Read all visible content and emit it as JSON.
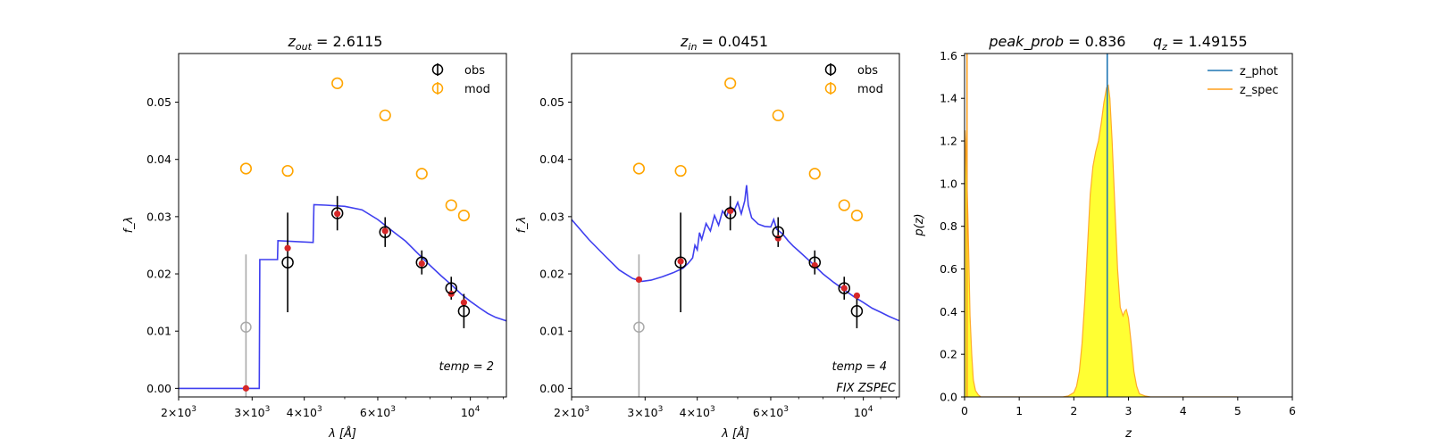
{
  "chart_data": [
    {
      "type": "scatter",
      "title": "z_out = 2.6115",
      "title_main": "z",
      "title_sub": "out",
      "title_rest": " = 2.6115",
      "xlabel": "λ [Å]",
      "ylabel": "f_λ",
      "xscale": "log",
      "xlim": [
        2000,
        12200
      ],
      "ylim": [
        -0.0015,
        0.0585
      ],
      "xticks": [
        {
          "v": 2000,
          "m": "2×10",
          "e": "3"
        },
        {
          "v": 3000,
          "m": "3×10",
          "e": "3"
        },
        {
          "v": 4000,
          "m": "4×10",
          "e": "3"
        },
        {
          "v": 6000,
          "m": "6×10",
          "e": "3"
        },
        {
          "v": 10000,
          "m": "10",
          "e": "4"
        }
      ],
      "yticks": [
        "0.00",
        "0.01",
        "0.02",
        "0.03",
        "0.04",
        "0.05"
      ],
      "ytick_values": [
        0,
        0.01,
        0.02,
        0.03,
        0.04,
        0.05
      ],
      "legend": [
        "obs",
        "mod"
      ],
      "legend_position": "top-right",
      "annotations": [
        "temp = 2"
      ],
      "series": [
        {
          "name": "obs",
          "x": [
            3650,
            4800,
            6250,
            7650,
            9000,
            9650
          ],
          "y": [
            0.022,
            0.0306,
            0.0273,
            0.022,
            0.0175,
            0.0135
          ],
          "yerr": [
            0.0087,
            0.003,
            0.0026,
            0.0021,
            0.002,
            0.003
          ],
          "color": "#000000"
        },
        {
          "name": "obs-nondetection",
          "x": [
            2900
          ],
          "y": [
            0.0107
          ],
          "yerr": [
            0.0127
          ],
          "color": "#aaaaaa"
        },
        {
          "name": "mod",
          "x": [
            2900,
            3650,
            4800,
            6250,
            7650,
            9000,
            9650
          ],
          "y": [
            0.0384,
            0.038,
            0.0533,
            0.0477,
            0.0375,
            0.032,
            0.0302
          ],
          "color": "#ffa500"
        },
        {
          "name": "model-bands",
          "x": [
            2900,
            3650,
            4800,
            6250,
            7650,
            9000,
            9650
          ],
          "y": [
            0.0,
            0.0245,
            0.0305,
            0.0275,
            0.0218,
            0.0165,
            0.015
          ],
          "color": "#d62728"
        },
        {
          "name": "template",
          "color": "#3f3fef",
          "x": [
            2000,
            3120,
            3130,
            3450,
            3460,
            4200,
            4220,
            4500,
            5000,
            5500,
            6000,
            6500,
            7000,
            7500,
            8000,
            8500,
            9000,
            9500,
            10000,
            10500,
            11000,
            11500,
            12200
          ],
          "y": [
            0.0,
            0.0,
            0.0225,
            0.0225,
            0.0258,
            0.0255,
            0.0321,
            0.032,
            0.0318,
            0.0312,
            0.0295,
            0.0275,
            0.0257,
            0.0235,
            0.0215,
            0.0197,
            0.0181,
            0.0165,
            0.0152,
            0.0141,
            0.0131,
            0.0124,
            0.0118
          ]
        }
      ]
    },
    {
      "type": "scatter",
      "title": "z_in = 0.0451",
      "title_main": "z",
      "title_sub": "in",
      "title_rest": " = 0.0451",
      "xlabel": "λ [Å]",
      "ylabel": "f_λ",
      "xscale": "log",
      "xlim": [
        2000,
        12200
      ],
      "ylim": [
        -0.0015,
        0.0585
      ],
      "xticks": [
        {
          "v": 2000,
          "m": "2×10",
          "e": "3"
        },
        {
          "v": 3000,
          "m": "3×10",
          "e": "3"
        },
        {
          "v": 4000,
          "m": "4×10",
          "e": "3"
        },
        {
          "v": 6000,
          "m": "6×10",
          "e": "3"
        },
        {
          "v": 10000,
          "m": "10",
          "e": "4"
        }
      ],
      "yticks": [
        "0.00",
        "0.01",
        "0.02",
        "0.03",
        "0.04",
        "0.05"
      ],
      "ytick_values": [
        0,
        0.01,
        0.02,
        0.03,
        0.04,
        0.05
      ],
      "legend": [
        "obs",
        "mod"
      ],
      "legend_position": "top-right",
      "annotations": [
        "temp = 4",
        "FIX ZSPEC"
      ],
      "series": [
        {
          "name": "obs",
          "x": [
            3650,
            4800,
            6250,
            7650,
            9000,
            9650
          ],
          "y": [
            0.022,
            0.0306,
            0.0273,
            0.022,
            0.0175,
            0.0135
          ],
          "yerr": [
            0.0087,
            0.003,
            0.0026,
            0.0021,
            0.002,
            0.003
          ],
          "color": "#000000"
        },
        {
          "name": "obs-nondetection",
          "x": [
            2900
          ],
          "y": [
            0.0107
          ],
          "yerr": [
            0.0127
          ],
          "color": "#aaaaaa"
        },
        {
          "name": "mod",
          "x": [
            2900,
            3650,
            4800,
            6250,
            7650,
            9000,
            9650
          ],
          "y": [
            0.0384,
            0.038,
            0.0533,
            0.0477,
            0.0375,
            0.032,
            0.0302
          ],
          "color": "#ffa500"
        },
        {
          "name": "model-bands",
          "x": [
            2900,
            3650,
            4800,
            6250,
            7650,
            9000,
            9650
          ],
          "y": [
            0.019,
            0.0222,
            0.031,
            0.0262,
            0.0215,
            0.0175,
            0.0162
          ],
          "color": "#d62728"
        },
        {
          "name": "template",
          "color": "#3f3fef",
          "x": [
            2000,
            2200,
            2400,
            2600,
            2800,
            2950,
            3100,
            3300,
            3500,
            3700,
            3800,
            3900,
            3950,
            4000,
            4050,
            4100,
            4200,
            4300,
            4400,
            4500,
            4600,
            4700,
            4800,
            4900,
            5000,
            5100,
            5200,
            5250,
            5300,
            5400,
            5600,
            5800,
            6000,
            6100,
            6200,
            6400,
            6600,
            6800,
            7000,
            7500,
            8000,
            8500,
            9000,
            9500,
            10000,
            10500,
            11000,
            11500,
            12200
          ],
          "y": [
            0.0295,
            0.026,
            0.0232,
            0.0207,
            0.0192,
            0.0187,
            0.0189,
            0.0195,
            0.0202,
            0.021,
            0.0218,
            0.0228,
            0.025,
            0.0242,
            0.0272,
            0.026,
            0.0288,
            0.0275,
            0.0302,
            0.0285,
            0.031,
            0.03,
            0.0318,
            0.031,
            0.0325,
            0.0305,
            0.0328,
            0.0355,
            0.032,
            0.0298,
            0.0287,
            0.0283,
            0.0282,
            0.0295,
            0.0278,
            0.027,
            0.0258,
            0.0248,
            0.024,
            0.022,
            0.02,
            0.0185,
            0.0172,
            0.016,
            0.015,
            0.014,
            0.0133,
            0.0126,
            0.0118
          ]
        }
      ]
    },
    {
      "type": "area",
      "title": "peak_prob = 0.836     q_z = 1.49155",
      "title_left": "peak_prob",
      "title_left_val": " = 0.836",
      "title_right_main": "q",
      "title_right_sub": "z",
      "title_right_val": " = 1.49155",
      "xlabel": "z",
      "ylabel": "p(z)",
      "xlim": [
        0,
        6
      ],
      "ylim": [
        0,
        1.61
      ],
      "xticks": [
        0,
        1,
        2,
        3,
        4,
        5,
        6
      ],
      "yticks": [
        "0.0",
        "0.2",
        "0.4",
        "0.6",
        "0.8",
        "1.0",
        "1.2",
        "1.4",
        "1.6"
      ],
      "ytick_values": [
        0,
        0.2,
        0.4,
        0.6,
        0.8,
        1.0,
        1.2,
        1.4,
        1.6
      ],
      "legend": [
        "z_phot",
        "z_spec"
      ],
      "legend_position": "top-right",
      "z_phot": 2.6115,
      "z_spec": 0.0451,
      "fill_color": "#ffff33",
      "series": [
        {
          "name": "p(z)",
          "color": "#ffaa2a",
          "x": [
            0.0,
            0.01,
            0.02,
            0.04,
            0.06,
            0.08,
            0.1,
            0.13,
            0.16,
            0.2,
            0.25,
            0.3,
            0.4,
            0.6,
            1.0,
            1.5,
            1.8,
            1.9,
            2.0,
            2.05,
            2.1,
            2.15,
            2.2,
            2.25,
            2.3,
            2.35,
            2.4,
            2.45,
            2.5,
            2.55,
            2.6,
            2.63,
            2.66,
            2.7,
            2.75,
            2.8,
            2.85,
            2.9,
            2.93,
            2.96,
            3.0,
            3.05,
            3.1,
            3.15,
            3.2,
            3.3,
            3.4,
            3.6,
            5.0
          ],
          "y": [
            0.0,
            1.25,
            1.2,
            1.05,
            0.85,
            0.62,
            0.38,
            0.2,
            0.08,
            0.03,
            0.01,
            0.0,
            0.0,
            0.0,
            0.0,
            0.0,
            0.0,
            0.005,
            0.02,
            0.05,
            0.12,
            0.25,
            0.45,
            0.7,
            0.95,
            1.08,
            1.15,
            1.2,
            1.28,
            1.38,
            1.45,
            1.46,
            1.4,
            1.2,
            0.9,
            0.6,
            0.42,
            0.38,
            0.4,
            0.41,
            0.37,
            0.25,
            0.12,
            0.05,
            0.015,
            0.005,
            0.0,
            0.0,
            0.0
          ]
        }
      ]
    }
  ]
}
